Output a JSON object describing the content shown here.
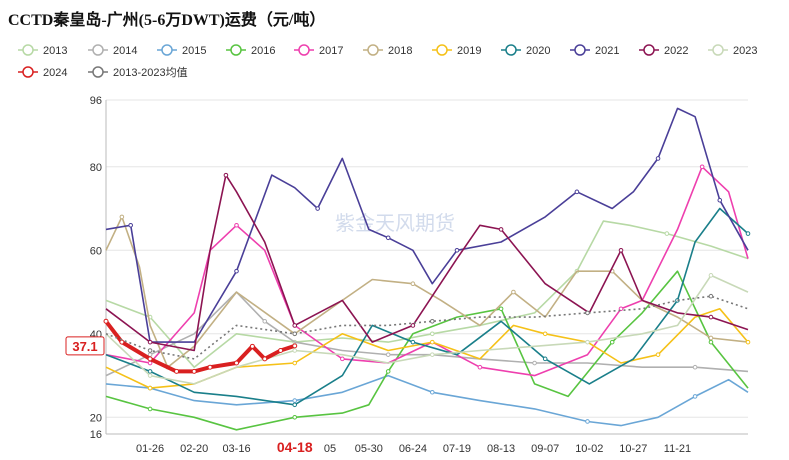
{
  "title": "CCTD秦皇岛-广州(5-6万DWT)运费（元/吨）",
  "watermark": "紫金天风期货",
  "chart_data": {
    "type": "line",
    "title": "CCTD秦皇岛-广州(5-6万DWT)运费（元/吨）",
    "xlabel": "",
    "ylabel": "",
    "ylim": [
      16,
      96
    ],
    "yticks": [
      16,
      20,
      40,
      60,
      80,
      96
    ],
    "xlim": [
      "01-01",
      "12-31"
    ],
    "x_ticks": [
      "01-26",
      "02-20",
      "03-16",
      "04-18",
      "05",
      "05-30",
      "06-24",
      "07-19",
      "08-13",
      "09-07",
      "10-02",
      "10-27",
      "11-21"
    ],
    "highlight_tick": "04-18",
    "current_value_label": "37.1",
    "legend": [
      "2013",
      "2014",
      "2015",
      "2016",
      "2017",
      "2018",
      "2019",
      "2020",
      "2021",
      "2022",
      "2023",
      "2024",
      "2013-2023均值"
    ],
    "series": [
      {
        "name": "2013",
        "color": "#b7d9a5",
        "points": [
          [
            "01-01",
            48
          ],
          [
            "01-26",
            44
          ],
          [
            "02-20",
            32
          ],
          [
            "03-16",
            40
          ],
          [
            "04-18",
            38
          ],
          [
            "05-15",
            39
          ],
          [
            "06-10",
            38
          ],
          [
            "07-05",
            40
          ],
          [
            "08-01",
            42
          ],
          [
            "09-01",
            45
          ],
          [
            "09-25",
            55
          ],
          [
            "10-10",
            67
          ],
          [
            "10-25",
            66
          ],
          [
            "11-15",
            64
          ],
          [
            "12-10",
            61
          ],
          [
            "12-31",
            58
          ]
        ]
      },
      {
        "name": "2014",
        "color": "#b0b0b0",
        "points": [
          [
            "01-01",
            30
          ],
          [
            "01-26",
            35
          ],
          [
            "02-20",
            40
          ],
          [
            "03-16",
            50
          ],
          [
            "04-01",
            43
          ],
          [
            "04-18",
            38
          ],
          [
            "05-15",
            36
          ],
          [
            "06-10",
            35
          ],
          [
            "07-05",
            35
          ],
          [
            "08-01",
            34
          ],
          [
            "09-01",
            33
          ],
          [
            "10-01",
            33
          ],
          [
            "11-01",
            32
          ],
          [
            "12-01",
            32
          ],
          [
            "12-31",
            31
          ]
        ]
      },
      {
        "name": "2015",
        "color": "#6aa6d6",
        "points": [
          [
            "01-01",
            28
          ],
          [
            "01-26",
            27
          ],
          [
            "02-20",
            24
          ],
          [
            "03-16",
            23
          ],
          [
            "04-18",
            24
          ],
          [
            "05-15",
            26
          ],
          [
            "06-10",
            30
          ],
          [
            "07-05",
            26
          ],
          [
            "08-01",
            24
          ],
          [
            "09-01",
            22
          ],
          [
            "10-01",
            19
          ],
          [
            "10-20",
            18
          ],
          [
            "11-10",
            20
          ],
          [
            "12-01",
            25
          ],
          [
            "12-20",
            29
          ],
          [
            "12-31",
            26
          ]
        ]
      },
      {
        "name": "2016",
        "color": "#58c441",
        "points": [
          [
            "01-01",
            25
          ],
          [
            "01-26",
            22
          ],
          [
            "02-20",
            20
          ],
          [
            "03-16",
            17
          ],
          [
            "04-18",
            20
          ],
          [
            "05-15",
            21
          ],
          [
            "05-30",
            23
          ],
          [
            "06-10",
            31
          ],
          [
            "06-24",
            40
          ],
          [
            "07-19",
            44
          ],
          [
            "08-13",
            46
          ],
          [
            "09-01",
            28
          ],
          [
            "09-20",
            25
          ],
          [
            "10-15",
            38
          ],
          [
            "11-01",
            45
          ],
          [
            "11-21",
            55
          ],
          [
            "12-10",
            38
          ],
          [
            "12-31",
            27
          ]
        ]
      },
      {
        "name": "2017",
        "color": "#ee3fae",
        "points": [
          [
            "01-01",
            35
          ],
          [
            "01-26",
            33
          ],
          [
            "02-20",
            45
          ],
          [
            "03-01",
            60
          ],
          [
            "03-16",
            66
          ],
          [
            "04-01",
            60
          ],
          [
            "04-18",
            42
          ],
          [
            "05-15",
            34
          ],
          [
            "06-10",
            33
          ],
          [
            "07-05",
            38
          ],
          [
            "08-01",
            32
          ],
          [
            "09-01",
            30
          ],
          [
            "10-01",
            35
          ],
          [
            "10-20",
            46
          ],
          [
            "11-01",
            48
          ],
          [
            "11-21",
            65
          ],
          [
            "12-05",
            80
          ],
          [
            "12-20",
            74
          ],
          [
            "12-31",
            58
          ]
        ]
      },
      {
        "name": "2018",
        "color": "#c2b084",
        "points": [
          [
            "01-01",
            60
          ],
          [
            "01-10",
            68
          ],
          [
            "01-20",
            56
          ],
          [
            "01-26",
            42
          ],
          [
            "02-05",
            32
          ],
          [
            "02-20",
            37
          ],
          [
            "03-16",
            50
          ],
          [
            "04-18",
            40
          ],
          [
            "05-15",
            48
          ],
          [
            "06-01",
            53
          ],
          [
            "06-24",
            52
          ],
          [
            "07-10",
            48
          ],
          [
            "08-01",
            42
          ],
          [
            "08-20",
            50
          ],
          [
            "09-07",
            44
          ],
          [
            "09-25",
            55
          ],
          [
            "10-15",
            55
          ],
          [
            "11-01",
            48
          ],
          [
            "11-21",
            44
          ],
          [
            "12-10",
            39
          ],
          [
            "12-31",
            38
          ]
        ]
      },
      {
        "name": "2019",
        "color": "#f5c118",
        "points": [
          [
            "01-01",
            32
          ],
          [
            "01-26",
            27
          ],
          [
            "02-20",
            28
          ],
          [
            "03-16",
            32
          ],
          [
            "04-18",
            33
          ],
          [
            "05-15",
            40
          ],
          [
            "06-10",
            36
          ],
          [
            "07-05",
            38
          ],
          [
            "08-01",
            34
          ],
          [
            "08-20",
            42
          ],
          [
            "09-07",
            40
          ],
          [
            "10-01",
            38
          ],
          [
            "10-20",
            33
          ],
          [
            "11-10",
            35
          ],
          [
            "12-01",
            44
          ],
          [
            "12-15",
            46
          ],
          [
            "12-31",
            38
          ]
        ]
      },
      {
        "name": "2020",
        "color": "#1a7f8a",
        "points": [
          [
            "01-01",
            35
          ],
          [
            "01-26",
            31
          ],
          [
            "02-20",
            26
          ],
          [
            "03-16",
            25
          ],
          [
            "04-18",
            23
          ],
          [
            "05-15",
            30
          ],
          [
            "06-01",
            42
          ],
          [
            "06-24",
            38
          ],
          [
            "07-19",
            35
          ],
          [
            "08-13",
            43
          ],
          [
            "09-07",
            34
          ],
          [
            "10-02",
            28
          ],
          [
            "10-27",
            34
          ],
          [
            "11-21",
            48
          ],
          [
            "12-01",
            62
          ],
          [
            "12-15",
            70
          ],
          [
            "12-31",
            64
          ]
        ]
      },
      {
        "name": "2021",
        "color": "#4a3f98",
        "points": [
          [
            "01-01",
            65
          ],
          [
            "01-15",
            66
          ],
          [
            "01-26",
            38
          ],
          [
            "02-20",
            38
          ],
          [
            "03-16",
            55
          ],
          [
            "04-05",
            78
          ],
          [
            "04-18",
            75
          ],
          [
            "05-01",
            70
          ],
          [
            "05-15",
            82
          ],
          [
            "05-30",
            65
          ],
          [
            "06-10",
            63
          ],
          [
            "06-24",
            60
          ],
          [
            "07-05",
            52
          ],
          [
            "07-19",
            60
          ],
          [
            "08-13",
            62
          ],
          [
            "09-07",
            68
          ],
          [
            "09-25",
            74
          ],
          [
            "10-15",
            70
          ],
          [
            "10-27",
            74
          ],
          [
            "11-10",
            82
          ],
          [
            "11-21",
            94
          ],
          [
            "12-01",
            92
          ],
          [
            "12-15",
            72
          ],
          [
            "12-31",
            60
          ]
        ]
      },
      {
        "name": "2022",
        "color": "#8c1452",
        "points": [
          [
            "01-01",
            46
          ],
          [
            "01-26",
            38
          ],
          [
            "02-20",
            36
          ],
          [
            "03-01",
            60
          ],
          [
            "03-10",
            78
          ],
          [
            "03-16",
            74
          ],
          [
            "04-01",
            62
          ],
          [
            "04-18",
            42
          ],
          [
            "05-15",
            48
          ],
          [
            "06-01",
            38
          ],
          [
            "06-24",
            42
          ],
          [
            "07-19",
            58
          ],
          [
            "08-01",
            66
          ],
          [
            "08-13",
            65
          ],
          [
            "09-07",
            52
          ],
          [
            "10-02",
            45
          ],
          [
            "10-20",
            60
          ],
          [
            "11-01",
            48
          ],
          [
            "11-21",
            45
          ],
          [
            "12-10",
            44
          ],
          [
            "12-31",
            41
          ]
        ]
      },
      {
        "name": "2023",
        "color": "#c8d9b8",
        "points": [
          [
            "01-01",
            40
          ],
          [
            "01-26",
            30
          ],
          [
            "02-20",
            28
          ],
          [
            "03-16",
            32
          ],
          [
            "04-18",
            36
          ],
          [
            "05-15",
            35
          ],
          [
            "06-10",
            33
          ],
          [
            "07-05",
            35
          ],
          [
            "08-01",
            36
          ],
          [
            "09-01",
            37
          ],
          [
            "10-01",
            38
          ],
          [
            "11-01",
            40
          ],
          [
            "11-21",
            42
          ],
          [
            "12-10",
            54
          ],
          [
            "12-31",
            50
          ]
        ]
      },
      {
        "name": "2024",
        "color": "#d92020",
        "points": [
          [
            "01-01",
            43
          ],
          [
            "01-10",
            38
          ],
          [
            "01-26",
            34
          ],
          [
            "02-10",
            31
          ],
          [
            "02-20",
            31
          ],
          [
            "03-01",
            32
          ],
          [
            "03-16",
            33
          ],
          [
            "03-25",
            37
          ],
          [
            "04-01",
            34
          ],
          [
            "04-10",
            36
          ],
          [
            "04-18",
            37.1
          ]
        ]
      },
      {
        "name": "2013-2023均值",
        "color": "#777777",
        "points": [
          [
            "01-01",
            40
          ],
          [
            "01-26",
            36
          ],
          [
            "02-20",
            34
          ],
          [
            "03-16",
            42
          ],
          [
            "04-18",
            40
          ],
          [
            "05-15",
            42
          ],
          [
            "06-10",
            42
          ],
          [
            "07-05",
            43
          ],
          [
            "08-01",
            44
          ],
          [
            "09-01",
            44
          ],
          [
            "10-01",
            45
          ],
          [
            "11-01",
            46
          ],
          [
            "11-21",
            48
          ],
          [
            "12-10",
            49
          ],
          [
            "12-31",
            46
          ]
        ]
      }
    ]
  }
}
